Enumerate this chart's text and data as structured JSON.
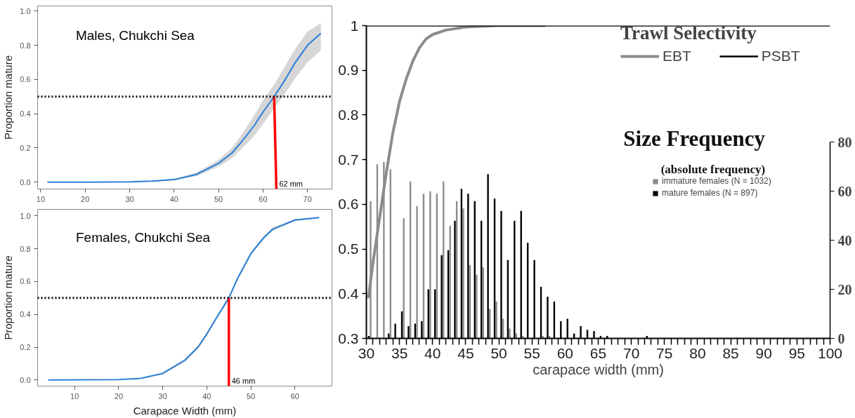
{
  "chart_data": [
    {
      "type": "line",
      "title": "Males, Chukchi Sea",
      "ylabel": "Proportion mature",
      "xlim": [
        9.3,
        75.5
      ],
      "ylim": [
        -0.04,
        1.03
      ],
      "xticks": [
        10,
        20,
        30,
        40,
        50,
        60,
        70
      ],
      "yticks": [
        {
          "value": 0,
          "label": "0.0"
        },
        {
          "value": 0.2,
          "label": "0.2"
        },
        {
          "value": 0.4,
          "label": "0.4"
        },
        {
          "value": 0.6,
          "label": "0.6"
        },
        {
          "value": 0.8,
          "label": "0.8"
        },
        {
          "value": 1,
          "label": "1.0"
        }
      ],
      "grid": false,
      "legend": false,
      "series": [
        {
          "color": "#2b7fd6",
          "x": [
            11.5,
            20,
            30,
            35,
            40,
            45,
            50,
            53,
            55,
            58,
            60,
            62.5,
            65,
            67,
            70,
            73
          ],
          "values": [
            0,
            0,
            0.002,
            0.006,
            0.015,
            0.045,
            0.11,
            0.17,
            0.23,
            0.33,
            0.41,
            0.5,
            0.6,
            0.69,
            0.8,
            0.87
          ],
          "lower": [
            0,
            0,
            0.001,
            0.004,
            0.011,
            0.036,
            0.09,
            0.14,
            0.19,
            0.27,
            0.34,
            0.43,
            0.52,
            0.6,
            0.7,
            0.77
          ],
          "upper": [
            0,
            0,
            0.003,
            0.008,
            0.02,
            0.055,
            0.13,
            0.2,
            0.27,
            0.39,
            0.48,
            0.57,
            0.68,
            0.77,
            0.88,
            0.93
          ]
        },
        {
          "color": "#ff0000",
          "x": [
            62.5,
            63.0
          ],
          "values": [
            0.5,
            -0.04
          ]
        }
      ],
      "ref_lines": [
        {
          "axis": "y",
          "value": 0.5,
          "color": "#000000",
          "line_style": "dotted"
        }
      ],
      "annotations": [
        {
          "text": "62 mm",
          "x": 63.0,
          "y": -0.04
        }
      ]
    },
    {
      "type": "line",
      "title": "Females, Chukchi Sea",
      "xlabel": "Carapace Width (mm)",
      "ylabel": "Proportion mature",
      "xlim": [
        1.6,
        68.4
      ],
      "ylim": [
        -0.037,
        1.04
      ],
      "xticks": [
        10,
        20,
        30,
        40,
        50,
        60
      ],
      "yticks": [
        {
          "value": 0,
          "label": "0.0"
        },
        {
          "value": 0.2,
          "label": "0.2"
        },
        {
          "value": 0.4,
          "label": "0.4"
        },
        {
          "value": 0.6,
          "label": "0.6"
        },
        {
          "value": 0.8,
          "label": "0.8"
        },
        {
          "value": 1,
          "label": "1.0"
        }
      ],
      "grid": false,
      "legend": false,
      "series": [
        {
          "color": "#2b7fd6",
          "x": [
            4,
            20,
            25,
            30,
            35,
            38,
            40,
            42,
            45,
            47,
            50,
            53,
            55,
            60,
            65.5
          ],
          "values": [
            0,
            0.003,
            0.01,
            0.04,
            0.12,
            0.2,
            0.28,
            0.37,
            0.5,
            0.62,
            0.77,
            0.87,
            0.92,
            0.975,
            0.99
          ],
          "lower": [
            0,
            0.002,
            0.008,
            0.035,
            0.11,
            0.19,
            0.27,
            0.36,
            0.49,
            0.61,
            0.76,
            0.86,
            0.91,
            0.97,
            0.985
          ],
          "upper": [
            0,
            0.004,
            0.012,
            0.045,
            0.13,
            0.21,
            0.29,
            0.38,
            0.51,
            0.63,
            0.78,
            0.88,
            0.93,
            0.98,
            0.995
          ]
        },
        {
          "color": "#ff0000",
          "x": [
            45,
            45
          ],
          "values": [
            0.5,
            -0.037
          ]
        }
      ],
      "ref_lines": [
        {
          "axis": "y",
          "value": 0.5,
          "color": "#000000",
          "line_style": "dotted"
        }
      ],
      "annotations": [
        {
          "text": "46 mm",
          "x": 45,
          "y": -0.037
        }
      ]
    },
    {
      "type": "bar",
      "xlabel": "carapace width (mm)",
      "legend_title": "Trawl Selectivity",
      "xlim": [
        30,
        100
      ],
      "ylim": [
        0.3,
        1.0
      ],
      "y2lim": [
        0,
        127.6
      ],
      "xticks": [
        30,
        {
          "value": 31,
          "label": null
        },
        {
          "value": 32,
          "label": null
        },
        {
          "value": 33,
          "label": null
        },
        {
          "value": 34,
          "label": null
        },
        35,
        {
          "value": 36,
          "label": null
        },
        {
          "value": 37,
          "label": null
        },
        {
          "value": 38,
          "label": null
        },
        {
          "value": 39,
          "label": null
        },
        40,
        {
          "value": 41,
          "label": null
        },
        {
          "value": 42,
          "label": null
        },
        {
          "value": 43,
          "label": null
        },
        {
          "value": 44,
          "label": null
        },
        45,
        {
          "value": 46,
          "label": null
        },
        {
          "value": 47,
          "label": null
        },
        {
          "value": 48,
          "label": null
        },
        {
          "value": 49,
          "label": null
        },
        50,
        {
          "value": 51,
          "label": null
        },
        {
          "value": 52,
          "label": null
        },
        {
          "value": 53,
          "label": null
        },
        {
          "value": 54,
          "label": null
        },
        55,
        {
          "value": 56,
          "label": null
        },
        {
          "value": 57,
          "label": null
        },
        {
          "value": 58,
          "label": null
        },
        {
          "value": 59,
          "label": null
        },
        60,
        {
          "value": 61,
          "label": null
        },
        {
          "value": 62,
          "label": null
        },
        {
          "value": 63,
          "label": null
        },
        {
          "value": 64,
          "label": null
        },
        65,
        {
          "value": 66,
          "label": null
        },
        {
          "value": 67,
          "label": null
        },
        {
          "value": 68,
          "label": null
        },
        {
          "value": 69,
          "label": null
        },
        70,
        {
          "value": 71,
          "label": null
        },
        {
          "value": 72,
          "label": null
        },
        {
          "value": 73,
          "label": null
        },
        {
          "value": 74,
          "label": null
        },
        75,
        {
          "value": 76,
          "label": null
        },
        {
          "value": 77,
          "label": null
        },
        {
          "value": 78,
          "label": null
        },
        {
          "value": 79,
          "label": null
        },
        80,
        {
          "value": 81,
          "label": null
        },
        {
          "value": 82,
          "label": null
        },
        {
          "value": 83,
          "label": null
        },
        {
          "value": 84,
          "label": null
        },
        85,
        {
          "value": 86,
          "label": null
        },
        {
          "value": 87,
          "label": null
        },
        {
          "value": 88,
          "label": null
        },
        {
          "value": 89,
          "label": null
        },
        90,
        {
          "value": 91,
          "label": null
        },
        {
          "value": 92,
          "label": null
        },
        {
          "value": 93,
          "label": null
        },
        {
          "value": 94,
          "label": null
        },
        95,
        {
          "value": 96,
          "label": null
        },
        {
          "value": 97,
          "label": null
        },
        {
          "value": 98,
          "label": null
        },
        {
          "value": 99,
          "label": null
        },
        100
      ],
      "yticks": [
        0.3,
        0.4,
        0.5,
        0.6,
        0.7,
        0.8,
        0.9,
        1
      ],
      "y2ticks": [
        0,
        20,
        40,
        60,
        80
      ],
      "grid": false,
      "legend": "right",
      "series": [
        {
          "name": "immature females (N = 1032)",
          "type": "bar",
          "axis": "y2",
          "color": "#8c8c8c",
          "x": [
            30.5,
            31.5,
            32.5,
            33.5,
            34.5,
            35.5,
            36.5,
            37.5,
            38.5,
            39.5,
            40.5,
            41.5,
            42.5,
            43.5,
            44.5,
            45.5,
            46.5,
            47.5,
            48.5,
            49.5,
            50.5,
            51.5,
            52.5,
            53.5,
            54.5,
            55.5,
            56.5,
            57.5
          ],
          "values": [
            56,
            71,
            72,
            69,
            null,
            49,
            64,
            54,
            59,
            60,
            59,
            64,
            46,
            56,
            53,
            30,
            26,
            29,
            12,
            15,
            8,
            4,
            2,
            1,
            0,
            0,
            1,
            1
          ]
        },
        {
          "name": "mature females (N = 897)",
          "type": "bar",
          "axis": "y2",
          "color": "#000000",
          "x": [
            30.5,
            31.5,
            32.5,
            33.5,
            34.5,
            35.5,
            36.5,
            37.5,
            38.5,
            39.5,
            40.5,
            41.5,
            42.5,
            43.5,
            44.5,
            45.5,
            46.5,
            47.5,
            48.5,
            49.5,
            50.5,
            51.5,
            52.5,
            53.5,
            54.5,
            55.5,
            56.5,
            57.5,
            58.5,
            59.5,
            60.5,
            61.5,
            62.5,
            63.5,
            64.5,
            65.5,
            66.5,
            67.5,
            68.5,
            69.5,
            70.5,
            71.5,
            72.5
          ],
          "values": [
            1,
            0,
            0,
            2,
            6,
            11,
            5,
            6,
            7,
            20,
            20,
            34,
            36,
            48,
            61,
            59,
            56,
            48,
            67,
            57,
            52,
            32,
            48,
            52,
            39,
            32,
            21,
            17,
            15,
            7,
            8,
            2,
            5,
            3.5,
            3,
            1,
            1,
            0,
            0,
            0,
            0,
            0,
            1
          ]
        },
        {
          "name": "EBT",
          "type": "line",
          "color": "#8c8c8c",
          "x": [
            30.3,
            31,
            32,
            33,
            34,
            35,
            36,
            37,
            38,
            39,
            40,
            42,
            45,
            50,
            57
          ],
          "values": [
            0.39,
            0.47,
            0.57,
            0.67,
            0.76,
            0.83,
            0.88,
            0.92,
            0.95,
            0.97,
            0.98,
            0.99,
            0.997,
            1.0,
            1.0
          ]
        },
        {
          "name": "PSBT",
          "type": "line",
          "color": "#000000",
          "x": [
            30,
            100
          ],
          "values": [
            1.0,
            1.0
          ]
        }
      ],
      "annotations": [
        "Size Frequency",
        "(absolute frequency)"
      ]
    }
  ]
}
